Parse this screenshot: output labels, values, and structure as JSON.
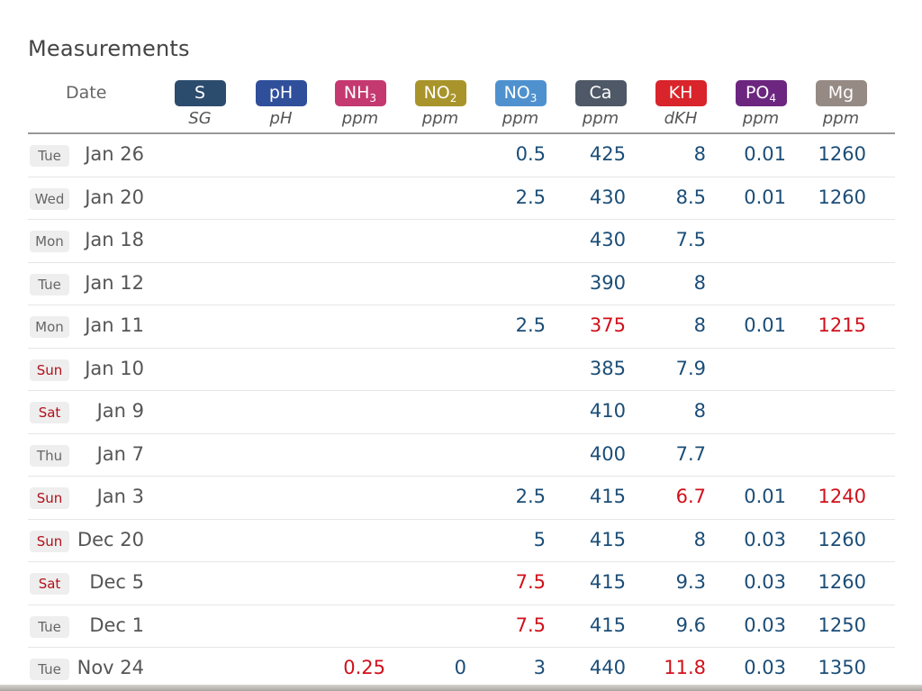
{
  "title": "Measurements",
  "date_header": "Date",
  "columns": [
    {
      "key": "s",
      "label": "S",
      "sub": "",
      "unit": "SG",
      "color": "#2c4c6e"
    },
    {
      "key": "ph",
      "label": "pH",
      "sub": "",
      "unit": "pH",
      "color": "#2f4f9a"
    },
    {
      "key": "nh3",
      "label": "NH",
      "sub": "3",
      "unit": "ppm",
      "color": "#c4396f"
    },
    {
      "key": "no2",
      "label": "NO",
      "sub": "2",
      "unit": "ppm",
      "color": "#a8942a"
    },
    {
      "key": "no3",
      "label": "NO",
      "sub": "3",
      "unit": "ppm",
      "color": "#4f91cf"
    },
    {
      "key": "ca",
      "label": "Ca",
      "sub": "",
      "unit": "ppm",
      "color": "#4e5866"
    },
    {
      "key": "kh",
      "label": "KH",
      "sub": "",
      "unit": "dKH",
      "color": "#d8242a"
    },
    {
      "key": "po4",
      "label": "PO",
      "sub": "4",
      "unit": "ppm",
      "color": "#6c2680"
    },
    {
      "key": "mg",
      "label": "Mg",
      "sub": "",
      "unit": "ppm",
      "color": "#958a84"
    }
  ],
  "colors": {
    "value": "#1b4d77",
    "alert": "#d0111b",
    "weekend_day": "#b3101a"
  },
  "rows": [
    {
      "day": "Tue",
      "weekend": false,
      "date": "Jan 26",
      "values": {
        "no3": "0.5",
        "ca": "425",
        "kh": "8",
        "po4": "0.01",
        "mg": "1260"
      }
    },
    {
      "day": "Wed",
      "weekend": false,
      "date": "Jan 20",
      "values": {
        "no3": "2.5",
        "ca": "430",
        "kh": "8.5",
        "po4": "0.01",
        "mg": "1260"
      }
    },
    {
      "day": "Mon",
      "weekend": false,
      "date": "Jan 18",
      "values": {
        "ca": "430",
        "kh": "7.5"
      }
    },
    {
      "day": "Tue",
      "weekend": false,
      "date": "Jan 12",
      "values": {
        "ca": "390",
        "kh": "8"
      }
    },
    {
      "day": "Mon",
      "weekend": false,
      "date": "Jan 11",
      "values": {
        "no3": "2.5",
        "ca": "375",
        "kh": "8",
        "po4": "0.01",
        "mg": "1215"
      },
      "alerts": [
        "ca",
        "mg"
      ]
    },
    {
      "day": "Sun",
      "weekend": true,
      "date": "Jan 10",
      "values": {
        "ca": "385",
        "kh": "7.9"
      }
    },
    {
      "day": "Sat",
      "weekend": true,
      "date": "Jan 9",
      "values": {
        "ca": "410",
        "kh": "8"
      }
    },
    {
      "day": "Thu",
      "weekend": false,
      "date": "Jan 7",
      "values": {
        "ca": "400",
        "kh": "7.7"
      }
    },
    {
      "day": "Sun",
      "weekend": true,
      "date": "Jan 3",
      "values": {
        "no3": "2.5",
        "ca": "415",
        "kh": "6.7",
        "po4": "0.01",
        "mg": "1240"
      },
      "alerts": [
        "kh",
        "mg"
      ]
    },
    {
      "day": "Sun",
      "weekend": true,
      "date": "Dec 20",
      "values": {
        "no3": "5",
        "ca": "415",
        "kh": "8",
        "po4": "0.03",
        "mg": "1260"
      }
    },
    {
      "day": "Sat",
      "weekend": true,
      "date": "Dec 5",
      "values": {
        "no3": "7.5",
        "ca": "415",
        "kh": "9.3",
        "po4": "0.03",
        "mg": "1260"
      },
      "alerts": [
        "no3"
      ]
    },
    {
      "day": "Tue",
      "weekend": false,
      "date": "Dec 1",
      "values": {
        "no3": "7.5",
        "ca": "415",
        "kh": "9.6",
        "po4": "0.03",
        "mg": "1250"
      },
      "alerts": [
        "no3"
      ]
    },
    {
      "day": "Tue",
      "weekend": false,
      "date": "Nov 24",
      "values": {
        "nh3": "0.25",
        "no2": "0",
        "no3": "3",
        "ca": "440",
        "kh": "11.8",
        "po4": "0.03",
        "mg": "1350"
      },
      "alerts": [
        "nh3",
        "kh"
      ]
    }
  ]
}
